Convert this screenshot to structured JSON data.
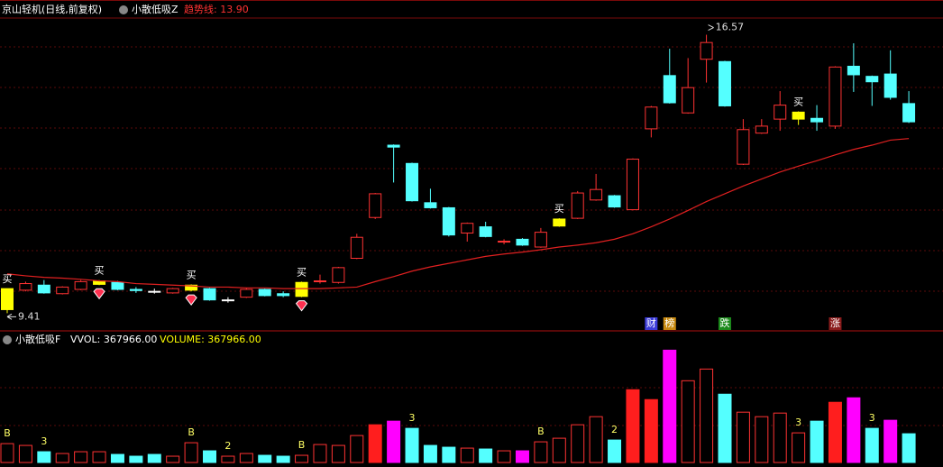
{
  "header": {
    "title": "京山轻机(日线,前复权)",
    "indicator": "小散低吸Z",
    "ma_legend": "趋势线: 13.90"
  },
  "chart_data": [
    {
      "type": "candlestick",
      "ylim": [
        9,
        17
      ],
      "open": [
        9.5,
        10.0,
        10.13,
        9.91,
        10.02,
        10.15,
        10.2,
        10.02,
        9.97,
        9.93,
        10.0,
        10.04,
        9.75,
        9.82,
        10.02,
        9.91,
        9.84,
        10.22,
        10.2,
        10.82,
        11.87,
        13.73,
        13.26,
        12.25,
        12.12,
        11.47,
        11.63,
        11.25,
        11.31,
        11.11,
        11.65,
        11.85,
        12.32,
        12.43,
        12.07,
        14.15,
        15.52,
        14.56,
        15.94,
        15.88,
        13.24,
        14.04,
        14.4,
        14.4,
        14.42,
        14.22,
        15.76,
        15.5,
        15.56,
        14.8
      ],
      "close": [
        10.04,
        10.17,
        9.93,
        10.08,
        10.22,
        10.24,
        10.02,
        9.99,
        9.97,
        10.04,
        10.13,
        9.75,
        9.75,
        10.02,
        9.86,
        9.86,
        10.2,
        10.24,
        10.58,
        11.36,
        12.48,
        13.68,
        12.3,
        12.12,
        11.42,
        11.72,
        11.38,
        11.26,
        11.16,
        11.49,
        11.83,
        12.5,
        12.59,
        12.14,
        13.37,
        14.71,
        14.82,
        15.21,
        16.37,
        14.74,
        14.13,
        14.22,
        14.76,
        14.58,
        14.33,
        15.74,
        15.54,
        15.36,
        14.96,
        14.33
      ],
      "high": [
        10.04,
        10.22,
        10.26,
        10.1,
        10.26,
        10.26,
        10.24,
        10.08,
        10.04,
        10.06,
        10.15,
        10.06,
        9.82,
        10.06,
        10.04,
        9.97,
        10.22,
        10.4,
        10.6,
        11.45,
        12.5,
        13.75,
        13.28,
        12.61,
        12.14,
        11.74,
        11.76,
        11.31,
        11.34,
        11.6,
        11.85,
        12.55,
        12.99,
        12.45,
        13.39,
        14.74,
        16.21,
        15.97,
        16.57,
        15.9,
        14.4,
        14.4,
        15.12,
        14.6,
        14.76,
        15.76,
        16.35,
        15.52,
        16.17,
        15.12
      ],
      "low": [
        9.41,
        9.97,
        9.91,
        9.89,
        10.0,
        10.13,
        10.0,
        9.93,
        9.91,
        9.91,
        9.97,
        9.73,
        9.68,
        9.8,
        9.84,
        9.82,
        9.82,
        10.17,
        10.17,
        10.8,
        11.83,
        12.77,
        12.28,
        12.1,
        11.38,
        11.25,
        11.36,
        11.18,
        11.14,
        11.09,
        11.63,
        11.83,
        12.3,
        12.12,
        12.05,
        13.93,
        14.8,
        14.54,
        15.34,
        14.72,
        13.22,
        14.02,
        14.1,
        14.25,
        14.1,
        14.15,
        15.1,
        14.74,
        14.9,
        14.3
      ],
      "colors": {
        "up": "#ff3232",
        "down": "#54ffff",
        "flat": "#ffffff",
        "signal": "#ffff00"
      },
      "series": [
        {
          "name": "趋势线",
          "color": "#e02020",
          "values": [
            10.42,
            10.37,
            10.33,
            10.31,
            10.28,
            10.24,
            10.22,
            10.17,
            10.15,
            10.13,
            10.11,
            10.08,
            10.08,
            10.06,
            10.06,
            10.04,
            10.04,
            10.04,
            10.06,
            10.08,
            10.22,
            10.35,
            10.49,
            10.6,
            10.69,
            10.78,
            10.87,
            10.93,
            10.98,
            11.04,
            11.11,
            11.16,
            11.22,
            11.31,
            11.45,
            11.63,
            11.83,
            12.05,
            12.28,
            12.48,
            12.68,
            12.86,
            13.04,
            13.19,
            13.33,
            13.48,
            13.62,
            13.73,
            13.86,
            13.9
          ]
        }
      ],
      "annotations": [
        {
          "index": 0,
          "text": "买"
        },
        {
          "index": 5,
          "text": "买"
        },
        {
          "index": 10,
          "text": "买"
        },
        {
          "index": 16,
          "text": "买"
        },
        {
          "index": 30,
          "text": "买"
        },
        {
          "index": 43,
          "text": "买"
        }
      ],
      "gems": [
        5,
        10,
        16
      ],
      "max_label": {
        "index": 38,
        "value": 16.57
      },
      "min_label": {
        "index": 0,
        "value": 9.41
      },
      "badges": [
        {
          "index": 35,
          "text": "财",
          "color": "#3c3cd8"
        },
        {
          "index": 36,
          "text": "榜",
          "color": "#c88a10"
        },
        {
          "index": 39,
          "text": "跌",
          "color": "#1c8a1c"
        },
        {
          "index": 45,
          "text": "涨",
          "color": "#8a1c1c"
        }
      ]
    },
    {
      "type": "bar",
      "title": "小散低吸F",
      "legend": [
        "VVOL: 367966.00",
        "VOLUME: 367966.00"
      ],
      "ylim": [
        0,
        1500000
      ],
      "values": [
        241500,
        218500,
        138000,
        115000,
        138000,
        138000,
        103500,
        80500,
        103500,
        80500,
        253000,
        149500,
        80500,
        115000,
        92000,
        80500,
        92000,
        230000,
        218500,
        345000,
        483000,
        529000,
        437000,
        218500,
        195500,
        184000,
        172500,
        149500,
        149500,
        264500,
        310500,
        483000,
        586500,
        287500,
        931500,
        805000,
        1437500,
        1046500,
        1196000,
        874000,
        644000,
        586500,
        632500,
        379500,
        529000,
        770500,
        828000,
        437000,
        540500,
        367966
      ],
      "styles": [
        "up",
        "up",
        "down",
        "up",
        "up",
        "up",
        "down",
        "down",
        "down",
        "up",
        "up",
        "down",
        "up",
        "up",
        "down",
        "down",
        "up",
        "up",
        "up",
        "up",
        "strong",
        "peak",
        "down",
        "down",
        "down",
        "up",
        "down",
        "up",
        "peak",
        "up",
        "up",
        "up",
        "up",
        "down",
        "strong",
        "strong",
        "peak",
        "up",
        "up",
        "down",
        "up",
        "up",
        "up",
        "up",
        "down",
        "strong",
        "peak",
        "down",
        "peak",
        "down"
      ],
      "style_colors": {
        "up": "#ff3232",
        "strong": "#ff1e1e",
        "down": "#54ffff",
        "peak": "#ff00ff"
      },
      "marks": [
        {
          "index": 0,
          "text": "B"
        },
        {
          "index": 2,
          "text": "3"
        },
        {
          "index": 10,
          "text": "B"
        },
        {
          "index": 12,
          "text": "2"
        },
        {
          "index": 16,
          "text": "B"
        },
        {
          "index": 22,
          "text": "3"
        },
        {
          "index": 29,
          "text": "B"
        },
        {
          "index": 33,
          "text": "2"
        },
        {
          "index": 43,
          "text": "3"
        },
        {
          "index": 47,
          "text": "3"
        }
      ]
    }
  ]
}
